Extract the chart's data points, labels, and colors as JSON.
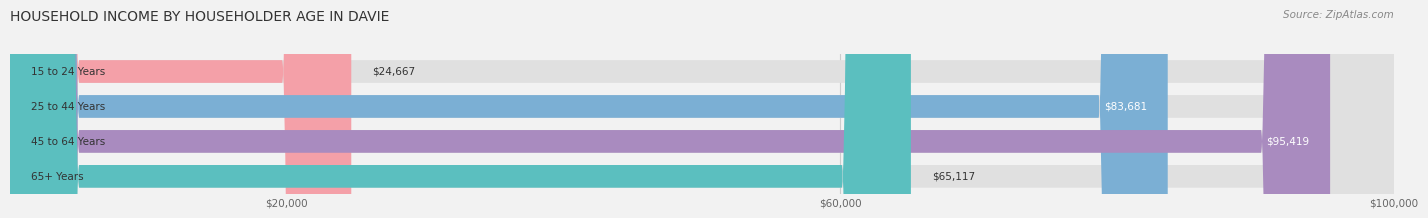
{
  "title": "HOUSEHOLD INCOME BY HOUSEHOLDER AGE IN DAVIE",
  "source": "Source: ZipAtlas.com",
  "categories": [
    "15 to 24 Years",
    "25 to 44 Years",
    "45 to 64 Years",
    "65+ Years"
  ],
  "values": [
    24667,
    83681,
    95419,
    65117
  ],
  "bar_colors": [
    "#f4a0a8",
    "#7bafd4",
    "#a98bbf",
    "#5bbfbf"
  ],
  "bar_labels": [
    "$24,667",
    "$83,681",
    "$95,419",
    "$65,117"
  ],
  "label_inside": [
    false,
    true,
    true,
    false
  ],
  "xlim": [
    0,
    100000
  ],
  "xticks": [
    20000,
    60000,
    100000
  ],
  "xtick_labels": [
    "$20,000",
    "$60,000",
    "$100,000"
  ],
  "background_color": "#f2f2f2",
  "bar_bg_color": "#e0e0e0",
  "title_fontsize": 10,
  "source_fontsize": 7.5,
  "label_fontsize": 7.5,
  "cat_fontsize": 7.5
}
